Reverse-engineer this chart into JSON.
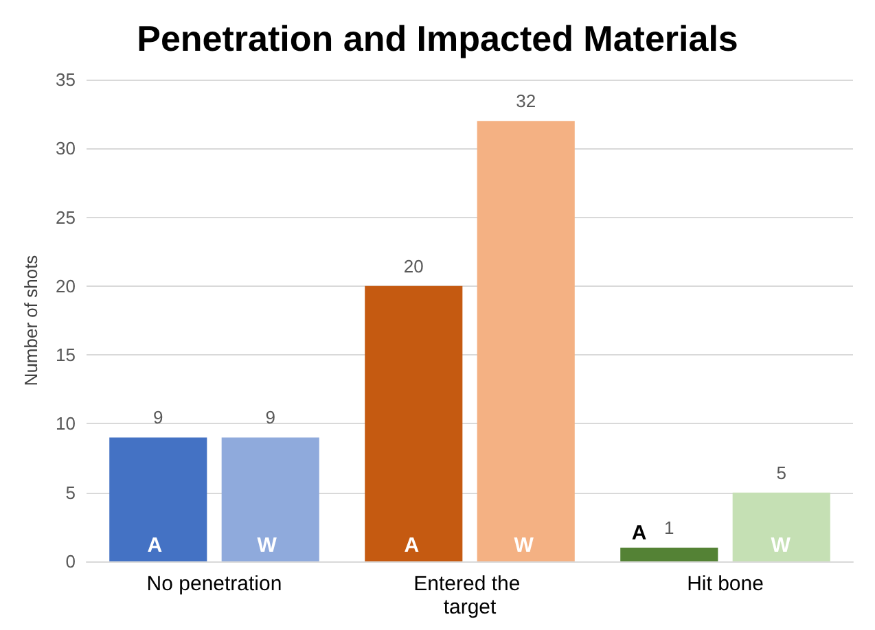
{
  "chart_data": {
    "type": "bar",
    "title": "Penetration and Impacted Materials",
    "ylabel": "Number of shots",
    "categories": [
      "No penetration",
      "Entered the target",
      "Hit bone"
    ],
    "series": [
      {
        "name": "A",
        "colors": [
          "#4472c4",
          "#c55a11",
          "#548235"
        ],
        "values": [
          9,
          20,
          1
        ]
      },
      {
        "name": "W",
        "colors": [
          "#8faadc",
          "#f4b183",
          "#c5e0b4"
        ],
        "values": [
          9,
          32,
          5
        ]
      }
    ],
    "ylim": [
      0,
      35
    ],
    "yticks": [
      0,
      5,
      10,
      15,
      20,
      25,
      30,
      35
    ],
    "grid": "y",
    "data_labels": true,
    "legend": false
  }
}
